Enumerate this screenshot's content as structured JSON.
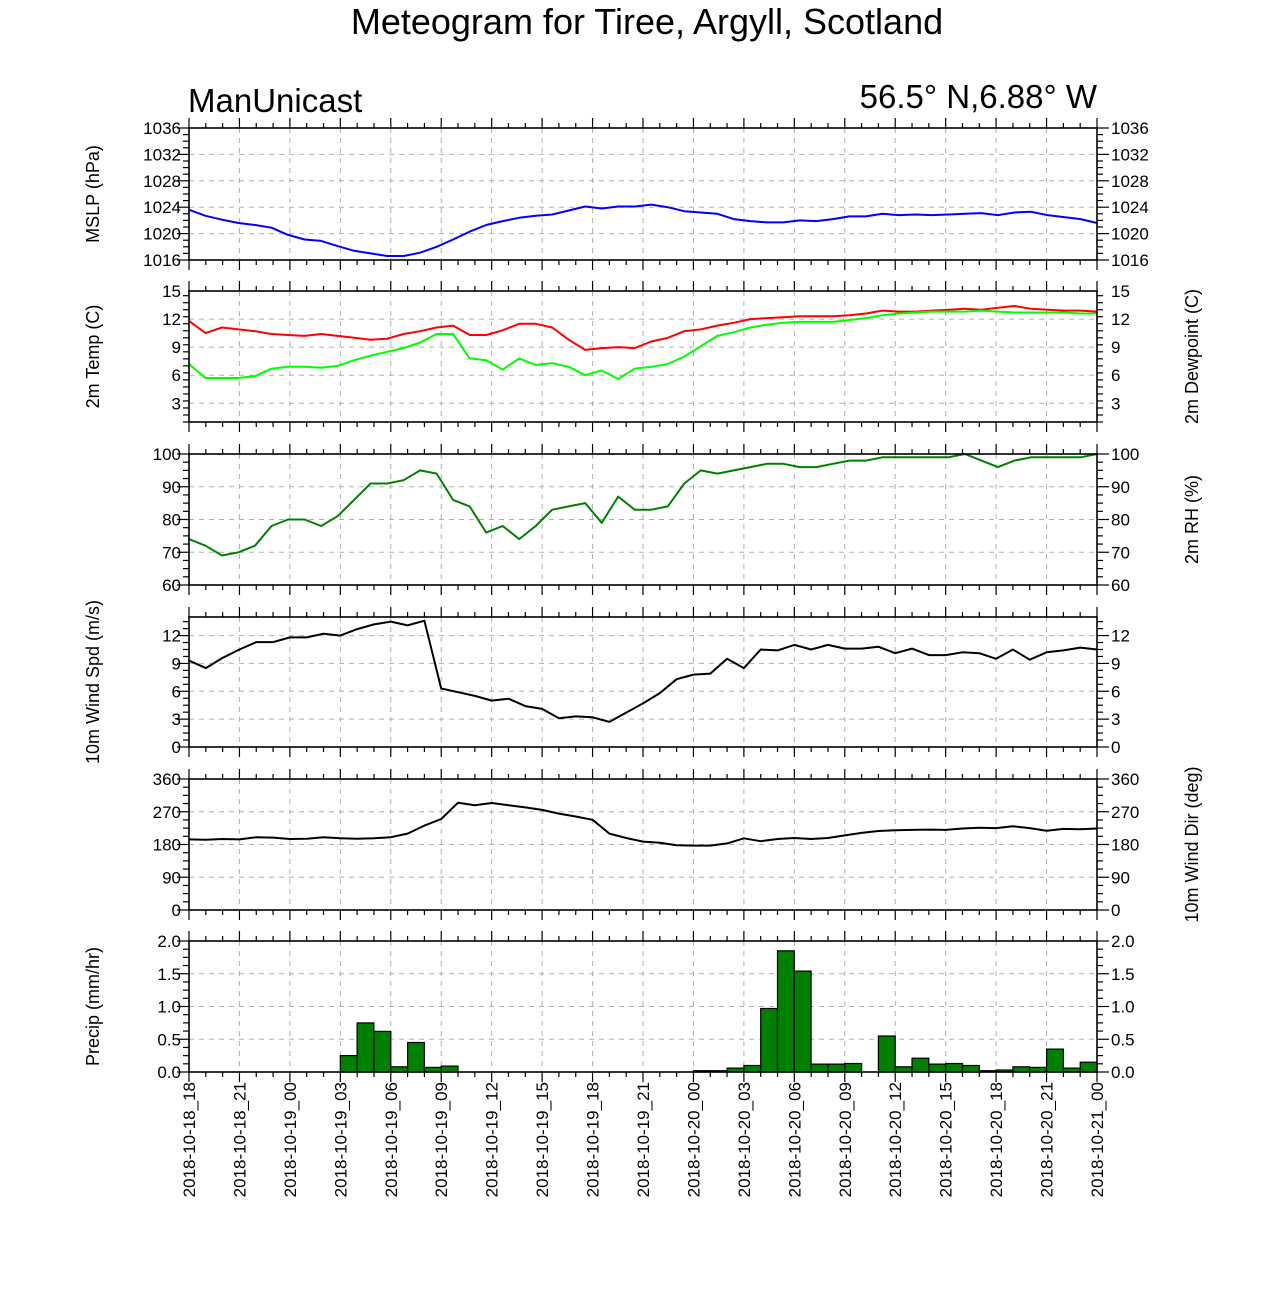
{
  "title": "Meteogram for Tiree, Argyll, Scotland",
  "model": "ManUnicast",
  "location": "56.5° N,6.88° W",
  "time_labels": [
    "2018-10-18_18",
    "2018-10-18_21",
    "2018-10-19_00",
    "2018-10-19_03",
    "2018-10-19_06",
    "2018-10-19_09",
    "2018-10-19_12",
    "2018-10-19_15",
    "2018-10-19_18",
    "2018-10-19_21",
    "2018-10-20_00",
    "2018-10-20_03",
    "2018-10-20_06",
    "2018-10-20_09",
    "2018-10-20_12",
    "2018-10-20_15",
    "2018-10-20_18",
    "2018-10-20_21",
    "2018-10-21_00"
  ],
  "chart_data": [
    {
      "type": "line",
      "ylabel_left": "MSLP (hPa)",
      "ylabel_right": "",
      "ylim": [
        1016,
        1036
      ],
      "yticks": [
        1016,
        1020,
        1024,
        1028,
        1032,
        1036
      ],
      "tick_labels_left": [
        "1016",
        "1020",
        "1024",
        "1028",
        "1032",
        "1036"
      ],
      "tick_labels_right": [
        "1016",
        "1020",
        "1024",
        "1028",
        "1032",
        "1036"
      ],
      "series": [
        {
          "color": "#0000ff",
          "values": [
            1023.6,
            1022.7,
            1022.1,
            1021.6,
            1021.3,
            1020.9,
            1019.8,
            1019.1,
            1018.9,
            1018.1,
            1017.4,
            1017.0,
            1016.6,
            1016.6,
            1017.1,
            1018.0,
            1019.1,
            1020.3,
            1021.3,
            1021.9,
            1022.4,
            1022.7,
            1022.9,
            1023.5,
            1024.1,
            1023.8,
            1024.1,
            1024.1,
            1024.4,
            1024.0,
            1023.4,
            1023.2,
            1023.0,
            1022.2,
            1021.9,
            1021.7,
            1021.7,
            1022.0,
            1021.9,
            1022.2,
            1022.6,
            1022.6,
            1023.0,
            1022.8,
            1022.9,
            1022.8,
            1022.9,
            1023.0,
            1023.1,
            1022.8,
            1023.2,
            1023.3,
            1022.8,
            1022.5,
            1022.2,
            1021.6
          ]
        }
      ]
    },
    {
      "type": "line",
      "ylabel_left": "2m Temp (C)",
      "ylabel_right": "2m Dewpoint (C)",
      "ylim": [
        1,
        15
      ],
      "yticks": [
        3,
        6,
        9,
        12,
        15
      ],
      "tick_labels_left": [
        "3",
        "6",
        "9",
        "12",
        "15"
      ],
      "tick_labels_right": [
        "3",
        "6",
        "9",
        "12",
        "15"
      ],
      "series": [
        {
          "color": "#ff0000",
          "values": [
            11.8,
            10.5,
            11.1,
            10.9,
            10.7,
            10.4,
            10.3,
            10.2,
            10.4,
            10.2,
            10.0,
            9.8,
            9.9,
            10.4,
            10.7,
            11.1,
            11.3,
            10.3,
            10.3,
            10.8,
            11.5,
            11.5,
            11.1,
            9.8,
            8.7,
            8.9,
            9.0,
            8.9,
            9.6,
            10.0,
            10.7,
            10.9,
            11.3,
            11.6,
            12.0,
            12.1,
            12.2,
            12.3,
            12.3,
            12.3,
            12.4,
            12.6,
            12.9,
            12.8,
            12.8,
            12.9,
            13.0,
            13.1,
            13.0,
            13.2,
            13.4,
            13.1,
            13.0,
            12.9,
            12.9,
            12.8
          ]
        },
        {
          "color": "#00ff00",
          "values": [
            7.2,
            5.7,
            5.7,
            5.7,
            5.9,
            6.7,
            6.9,
            6.9,
            6.8,
            7.0,
            7.6,
            8.1,
            8.5,
            8.9,
            9.5,
            10.4,
            10.4,
            7.8,
            7.6,
            6.6,
            7.8,
            7.1,
            7.3,
            6.9,
            6.0,
            6.5,
            5.6,
            6.7,
            6.9,
            7.2,
            8.0,
            9.1,
            10.2,
            10.6,
            11.1,
            11.4,
            11.6,
            11.7,
            11.7,
            11.7,
            11.9,
            12.1,
            12.4,
            12.6,
            12.7,
            12.8,
            12.8,
            12.8,
            12.9,
            12.8,
            12.7,
            12.7,
            12.7,
            12.7,
            12.6,
            12.6
          ]
        }
      ]
    },
    {
      "type": "line",
      "ylabel_left": "",
      "ylabel_right": "2m RH (%)",
      "ylim": [
        60,
        100
      ],
      "yticks": [
        60,
        70,
        80,
        90,
        100
      ],
      "tick_labels_left": [
        "60",
        "70",
        "80",
        "90",
        "100"
      ],
      "tick_labels_right": [
        "60",
        "70",
        "80",
        "90",
        "100"
      ],
      "series": [
        {
          "color": "#008000",
          "values": [
            74,
            72,
            69,
            70,
            72,
            78,
            80,
            80,
            78,
            81,
            86,
            91,
            91,
            92,
            95,
            94,
            86,
            84,
            76,
            78,
            74,
            78,
            83,
            84,
            85,
            79,
            87,
            83,
            83,
            84,
            91,
            95,
            94,
            95,
            96,
            97,
            97,
            96,
            96,
            97,
            98,
            98,
            99,
            99,
            99,
            99,
            99,
            100,
            98,
            96,
            98,
            99,
            99,
            99,
            99,
            100
          ]
        }
      ]
    },
    {
      "type": "line",
      "ylabel_left": "10m Wind Spd (m/s)",
      "ylabel_right": "",
      "ylim": [
        0,
        14
      ],
      "yticks": [
        0,
        3,
        6,
        9,
        12
      ],
      "tick_labels_left": [
        "0",
        "3",
        "6",
        "9",
        "12"
      ],
      "tick_labels_right": [
        "0",
        "3",
        "6",
        "9",
        "12"
      ],
      "series": [
        {
          "color": "#000000",
          "values": [
            9.3,
            8.5,
            9.6,
            10.5,
            11.3,
            11.3,
            11.8,
            11.8,
            12.2,
            12.0,
            12.7,
            13.2,
            13.5,
            13.1,
            13.6,
            6.3,
            5.9,
            5.5,
            5.0,
            5.2,
            4.4,
            4.1,
            3.1,
            3.3,
            3.2,
            2.7,
            3.7,
            4.7,
            5.8,
            7.3,
            7.8,
            7.9,
            9.5,
            8.5,
            10.5,
            10.4,
            11.0,
            10.5,
            11.0,
            10.6,
            10.6,
            10.8,
            10.1,
            10.6,
            9.9,
            9.9,
            10.2,
            10.1,
            9.5,
            10.5,
            9.4,
            10.2,
            10.4,
            10.7,
            10.5
          ]
        }
      ]
    },
    {
      "type": "line",
      "ylabel_left": "",
      "ylabel_right": "10m Wind Dir (deg)",
      "ylim": [
        0,
        360
      ],
      "yticks": [
        0,
        90,
        180,
        270,
        360
      ],
      "tick_labels_left": [
        "0",
        "90",
        "180",
        "270",
        "360"
      ],
      "tick_labels_right": [
        "0",
        "90",
        "180",
        "270",
        "360"
      ],
      "series": [
        {
          "color": "#000000",
          "values": [
            194,
            193,
            195,
            194,
            200,
            199,
            195,
            196,
            200,
            197,
            196,
            197,
            200,
            210,
            232,
            250,
            295,
            288,
            294,
            288,
            282,
            275,
            265,
            257,
            248,
            210,
            198,
            188,
            185,
            178,
            177,
            177,
            183,
            197,
            189,
            195,
            198,
            195,
            198,
            205,
            212,
            217,
            219,
            220,
            221,
            220,
            224,
            226,
            225,
            230,
            225,
            218,
            223,
            222,
            224
          ]
        }
      ]
    },
    {
      "type": "bar",
      "ylabel_left": "Precip (mm/hr)",
      "ylabel_right": "",
      "ylim": [
        0,
        2.0
      ],
      "yticks": [
        0,
        0.5,
        1.0,
        1.5,
        2.0
      ],
      "tick_labels_left": [
        "0.0",
        "0.5",
        "1.0",
        "1.5",
        "2.0"
      ],
      "tick_labels_right": [
        "0.0",
        "0.5",
        "1.0",
        "1.5",
        "2.0"
      ],
      "bar_color": "#008000",
      "values": [
        0,
        0,
        0,
        0,
        0,
        0,
        0,
        0,
        0,
        0.25,
        0.75,
        0.62,
        0.08,
        0.45,
        0.07,
        0.09,
        0,
        0,
        0,
        0,
        0,
        0,
        0,
        0,
        0,
        0,
        0,
        0,
        0,
        0,
        0.02,
        0.02,
        0.06,
        0.1,
        0.97,
        1.85,
        1.54,
        0.12,
        0.12,
        0.13,
        0,
        0.55,
        0.08,
        0.21,
        0.12,
        0.13,
        0.1,
        0.02,
        0.03,
        0.08,
        0.07,
        0.35,
        0.06,
        0.15
      ]
    }
  ]
}
